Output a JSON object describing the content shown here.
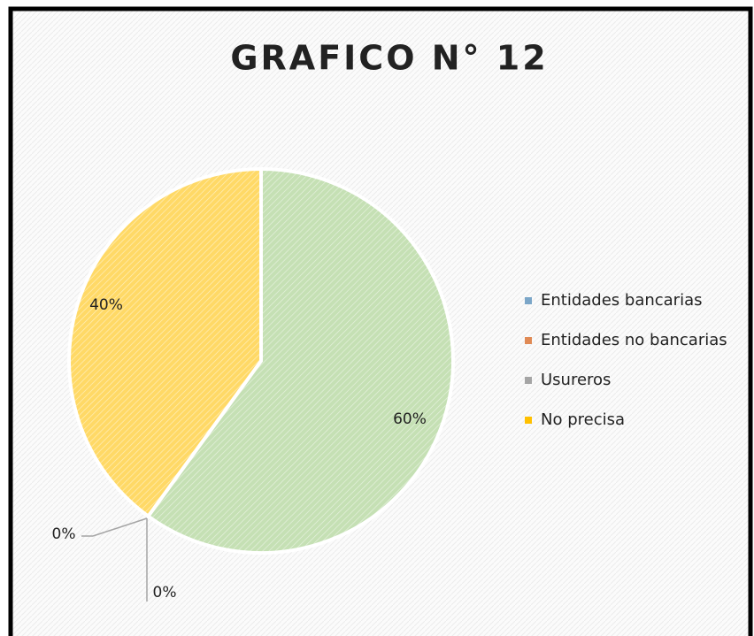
{
  "chart_data": {
    "type": "pie",
    "title": "GRAFICO N° 12",
    "categories": [
      "Entidades bancarias",
      "Entidades no bancarias",
      "Usureros",
      "No precisa"
    ],
    "values": [
      60,
      0,
      0,
      40
    ],
    "value_labels": [
      "60%",
      "0%",
      "0%",
      "40%"
    ],
    "colors": [
      "#7ba6c8",
      "#e08a55",
      "#a5a5a5",
      "#ffc000"
    ],
    "slice_colors": [
      "#c5e0b4",
      "#e08a55",
      "#a5a5a5",
      "#ffd966"
    ],
    "legend": "right"
  }
}
